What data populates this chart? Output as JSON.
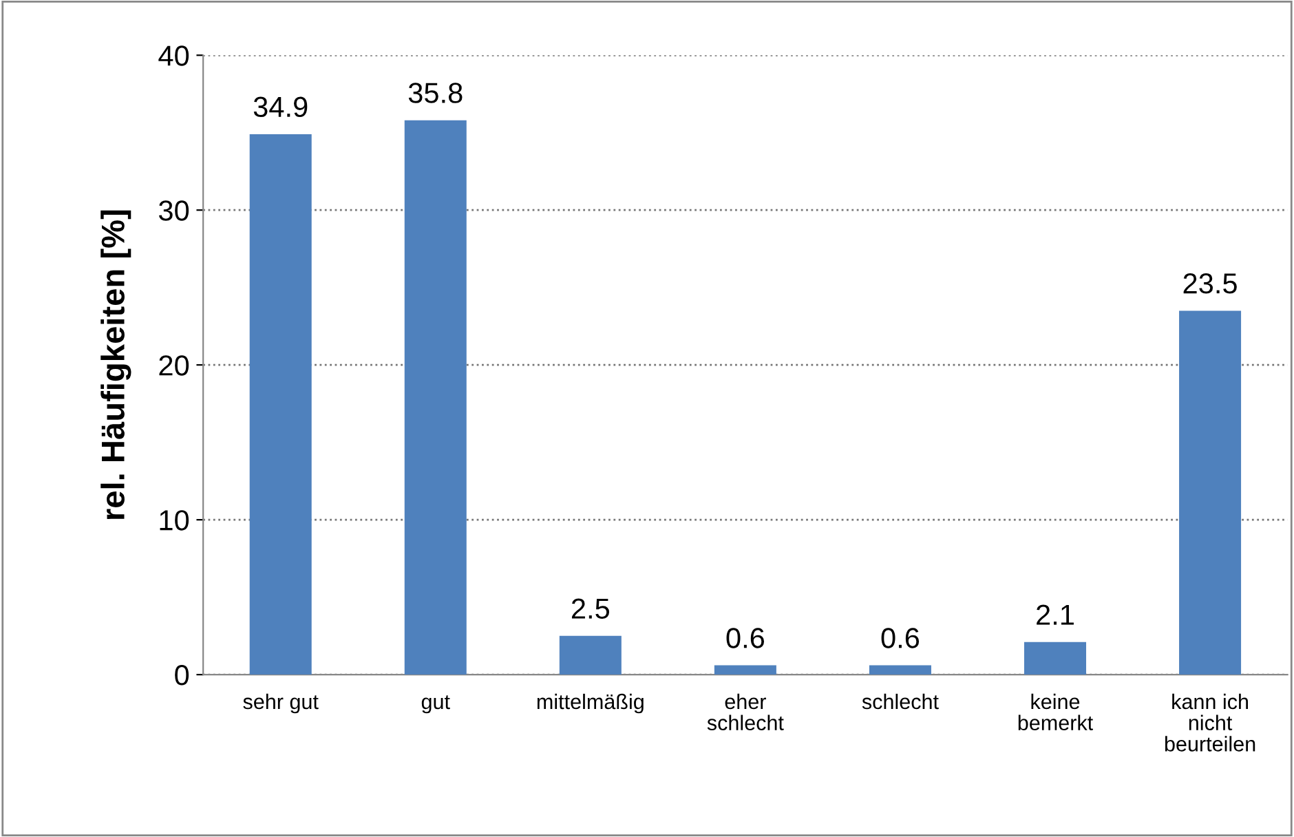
{
  "chart_data": {
    "type": "bar",
    "ylabel": "rel. Häufigkeiten [%]",
    "categories": [
      "sehr gut",
      "gut",
      "mittelmäßig",
      "eher\nschlecht",
      "schlecht",
      "keine\nbemerkt",
      "kann ich\nnicht\nbeurteilen"
    ],
    "values": [
      34.9,
      35.8,
      2.5,
      0.6,
      0.6,
      2.1,
      23.5
    ],
    "color": "#4f81bd",
    "ylim": [
      0,
      40
    ],
    "yticks": [
      0,
      10,
      20,
      30,
      40
    ],
    "grid": "y",
    "data_labels": true,
    "legend": false
  }
}
